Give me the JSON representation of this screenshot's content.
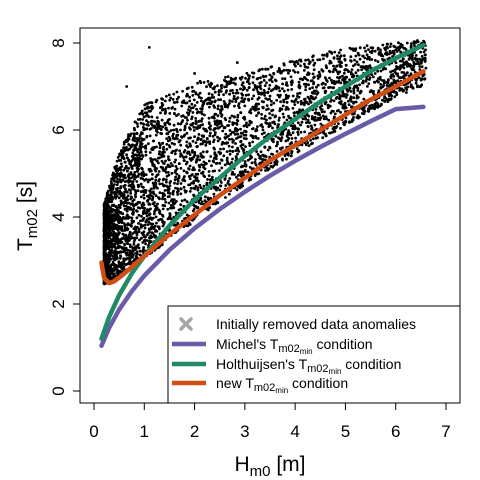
{
  "chart_data": {
    "type": "scatter",
    "title": "",
    "xlabel": {
      "main": "H",
      "sub": "m0",
      "unit": " [m]"
    },
    "ylabel": {
      "main": "T",
      "sub": "m02",
      "unit": " [s]"
    },
    "xlim": [
      0,
      7
    ],
    "ylim": [
      0,
      8
    ],
    "x_ticks": [
      0,
      1,
      2,
      3,
      4,
      5,
      6,
      7
    ],
    "y_ticks": [
      0,
      2,
      4,
      6,
      8
    ],
    "grid": false,
    "legend_position": "bottom-right",
    "scatter": {
      "color": "#000000",
      "description": "dense cloud of observations",
      "lower_envelope": [
        [
          0.2,
          2.45
        ],
        [
          0.5,
          2.65
        ],
        [
          1.0,
          3.05
        ],
        [
          2.0,
          3.9
        ],
        [
          3.0,
          4.75
        ],
        [
          4.0,
          5.45
        ],
        [
          5.0,
          6.1
        ],
        [
          6.0,
          6.75
        ],
        [
          6.5,
          7.0
        ]
      ],
      "upper_envelope": [
        [
          0.2,
          4.3
        ],
        [
          0.5,
          5.5
        ],
        [
          1.0,
          6.6
        ],
        [
          2.0,
          7.1
        ],
        [
          3.0,
          7.3
        ],
        [
          4.0,
          7.6
        ],
        [
          5.0,
          7.9
        ],
        [
          6.0,
          8.0
        ],
        [
          6.6,
          8.1
        ]
      ],
      "outliers": [
        [
          0.65,
          7.0
        ],
        [
          1.1,
          7.9
        ],
        [
          2.0,
          7.3
        ],
        [
          2.85,
          7.55
        ]
      ]
    },
    "series": [
      {
        "name": "Initially removed data anomalies",
        "kind": "marker",
        "color": "#a6a6a6",
        "x": [],
        "y": []
      },
      {
        "name": {
          "pre": "Michel's T",
          "sub": "m02",
          "subsub": "min",
          "post": " condition"
        },
        "kind": "line",
        "color": "#6a5aa8",
        "x": [
          0.15,
          0.3,
          0.5,
          0.75,
          1.0,
          1.5,
          2.0,
          2.5,
          3.0,
          3.5,
          4.0,
          4.5,
          5.0,
          5.5,
          6.0,
          6.55
        ],
        "y": [
          1.04,
          1.45,
          1.87,
          2.29,
          2.65,
          3.24,
          3.74,
          4.18,
          4.58,
          4.95,
          5.29,
          5.61,
          5.91,
          6.2,
          6.48,
          6.53
        ]
      },
      {
        "name": {
          "pre": "Holthuijsen's T",
          "sub": "m02",
          "subsub": "min",
          "post": " condition"
        },
        "kind": "line",
        "color": "#1f8a63",
        "x": [
          0.15,
          0.3,
          0.5,
          0.75,
          1.0,
          1.5,
          2.0,
          2.5,
          3.0,
          3.5,
          4.0,
          4.5,
          5.0,
          5.5,
          6.0,
          6.55
        ],
        "y": [
          1.2,
          1.7,
          2.2,
          2.7,
          3.1,
          3.8,
          4.4,
          4.9,
          5.4,
          5.85,
          6.25,
          6.65,
          7.0,
          7.35,
          7.65,
          7.95
        ]
      },
      {
        "name": {
          "pre": "new T",
          "sub": "m02",
          "subsub": "min",
          "post": " condition"
        },
        "kind": "line",
        "color": "#d04e14",
        "x": [
          0.15,
          0.2,
          0.3,
          0.4,
          0.55,
          0.75,
          1.0,
          1.5,
          2.0,
          2.5,
          3.0,
          3.5,
          4.0,
          4.5,
          5.0,
          5.5,
          6.0,
          6.55
        ],
        "y": [
          2.95,
          2.6,
          2.48,
          2.52,
          2.65,
          2.85,
          3.1,
          3.6,
          4.05,
          4.5,
          4.9,
          5.3,
          5.65,
          6.0,
          6.35,
          6.7,
          7.0,
          7.35
        ]
      }
    ]
  }
}
